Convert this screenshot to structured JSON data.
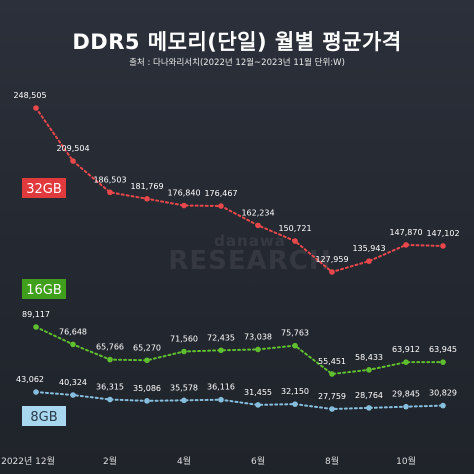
{
  "title": "DDR5 메모리(단일) 월별 평균가격",
  "subtitle": "출처 : 다나와리서치(2022년 12월~2023년 11월 단위:W)",
  "watermark": {
    "line1": "danawa",
    "line2": "RESEARCH"
  },
  "chart_data": {
    "type": "line",
    "x_tick_labels": [
      "2022년 12월",
      "2월",
      "4월",
      "6월",
      "8월",
      "10월"
    ],
    "x_tick_index": [
      0,
      2,
      4,
      6,
      8,
      10
    ],
    "series": [
      {
        "name": "32GB",
        "color": "#e8484b",
        "values": [
          248505,
          209504,
          186503,
          181769,
          176840,
          176467,
          162234,
          150721,
          127959,
          135943,
          147870,
          147102
        ],
        "labels": [
          "248,505",
          "209,504",
          "186,503",
          "181,769",
          "176,840",
          "176,467",
          "162,234",
          "150,721",
          "127,959",
          "135,943",
          "147,870",
          "147,102"
        ]
      },
      {
        "name": "16GB",
        "color": "#5fbf2f",
        "values": [
          89117,
          76648,
          65766,
          65270,
          71560,
          72435,
          73038,
          75763,
          55451,
          58433,
          63912,
          63945
        ],
        "labels": [
          "89,117",
          "76,648",
          "65,766",
          "65,270",
          "71,560",
          "72,435",
          "73,038",
          "75,763",
          "55,451",
          "58,433",
          "63,912",
          "63,945"
        ]
      },
      {
        "name": "8GB",
        "color": "#86bede",
        "values": [
          43062,
          40324,
          36315,
          35086,
          35578,
          36116,
          31455,
          32150,
          27759,
          28764,
          29845,
          30829
        ],
        "labels": [
          "43,062",
          "40,324",
          "36,315",
          "35,086",
          "35,578",
          "36,116",
          "31,455",
          "32,150",
          "27,759",
          "28,764",
          "29,845",
          "30,829"
        ]
      }
    ]
  }
}
